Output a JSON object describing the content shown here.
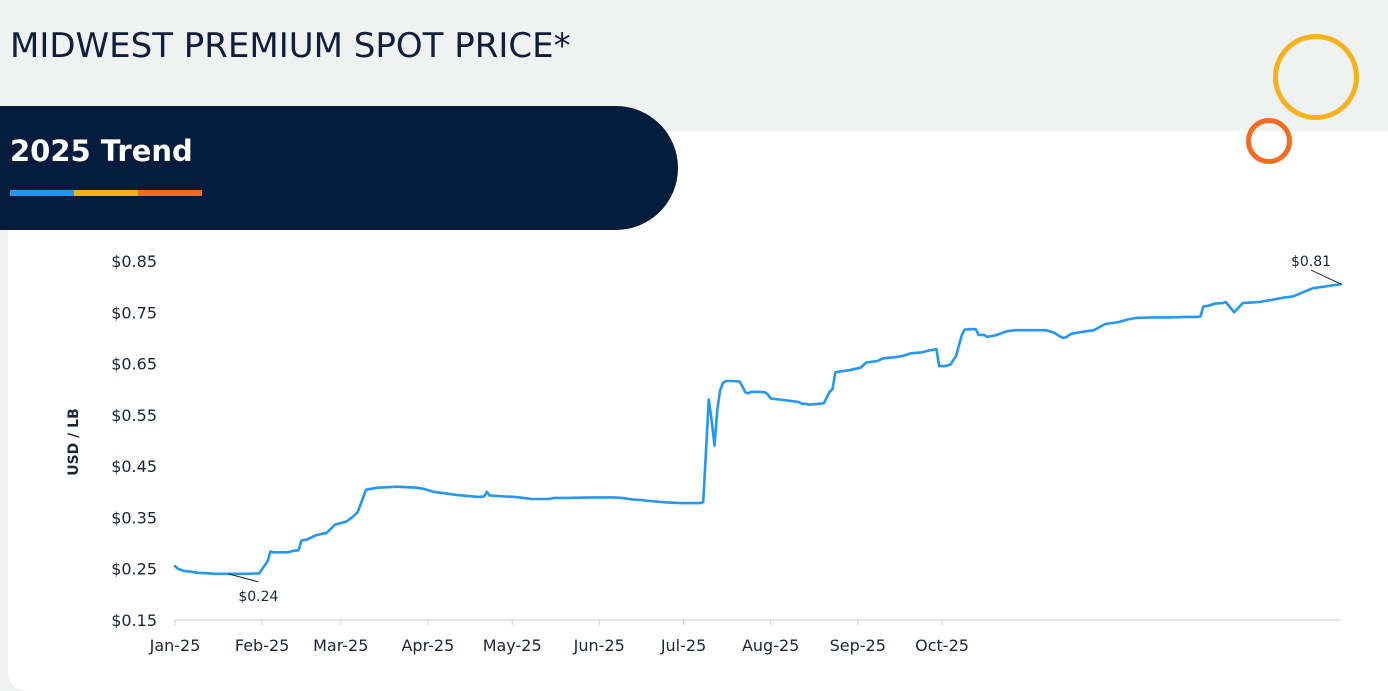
{
  "page": {
    "title": "MIDWEST PREMIUM SPOT PRICE*",
    "banner_title": "2025 Trend",
    "colors": {
      "banner": "#061c3c",
      "stripe_blue": "#2597ee",
      "stripe_yellow": "#f7b11a",
      "stripe_orange": "#f26b21",
      "line": "#2597ee"
    }
  },
  "chart_data": {
    "type": "line",
    "title": "",
    "xlabel": "",
    "ylabel": "USD / LB",
    "ylim": [
      0.15,
      0.85
    ],
    "y_ticks": [
      0.15,
      0.25,
      0.35,
      0.45,
      0.55,
      0.65,
      0.75,
      0.85
    ],
    "y_tick_labels": [
      "$0.15",
      "$0.25",
      "$0.35",
      "$0.45",
      "$0.55",
      "$0.65",
      "$0.75",
      "$0.85"
    ],
    "x_tick_dates": [
      "2025-01-01",
      "2025-02-01",
      "2025-03-01",
      "2025-04-01",
      "2025-05-01",
      "2025-06-01",
      "2025-07-01",
      "2025-08-01",
      "2025-09-01",
      "2025-10-01"
    ],
    "x_tick_labels": [
      "Jan-25",
      "Feb-25",
      "Mar-25",
      "Apr-25",
      "May-25",
      "Jun-25",
      "Jul-25",
      "Aug-25",
      "Sep-25",
      "Oct-25"
    ],
    "grid": false,
    "series": [
      {
        "values": [
          [
            "2025-01-01",
            0.255
          ],
          [
            "2025-01-02",
            0.25
          ],
          [
            "2025-01-04",
            0.246
          ],
          [
            "2025-01-07",
            0.244
          ],
          [
            "2025-01-09",
            0.242
          ],
          [
            "2025-01-13",
            0.241
          ],
          [
            "2025-01-15",
            0.24
          ],
          [
            "2025-01-20",
            0.24
          ],
          [
            "2025-01-27",
            0.24
          ],
          [
            "2025-01-31",
            0.241
          ],
          [
            "2025-02-03",
            0.265
          ],
          [
            "2025-02-04",
            0.284
          ],
          [
            "2025-02-05",
            0.282
          ],
          [
            "2025-02-10",
            0.282
          ],
          [
            "2025-02-11",
            0.283
          ],
          [
            "2025-02-12",
            0.285
          ],
          [
            "2025-02-14",
            0.286
          ],
          [
            "2025-02-15",
            0.305
          ],
          [
            "2025-02-17",
            0.307
          ],
          [
            "2025-02-20",
            0.315
          ],
          [
            "2025-02-24",
            0.32
          ],
          [
            "2025-02-27",
            0.336
          ],
          [
            "2025-03-03",
            0.342
          ],
          [
            "2025-03-05",
            0.35
          ],
          [
            "2025-03-07",
            0.36
          ],
          [
            "2025-03-10",
            0.404
          ],
          [
            "2025-03-14",
            0.408
          ],
          [
            "2025-03-21",
            0.41
          ],
          [
            "2025-03-28",
            0.408
          ],
          [
            "2025-03-31",
            0.405
          ],
          [
            "2025-04-03",
            0.4
          ],
          [
            "2025-04-07",
            0.397
          ],
          [
            "2025-04-11",
            0.394
          ],
          [
            "2025-04-15",
            0.392
          ],
          [
            "2025-04-19",
            0.39
          ],
          [
            "2025-04-21",
            0.391
          ],
          [
            "2025-04-22",
            0.4
          ],
          [
            "2025-04-23",
            0.393
          ],
          [
            "2025-04-28",
            0.391
          ],
          [
            "2025-05-02",
            0.39
          ],
          [
            "2025-05-05",
            0.388
          ],
          [
            "2025-05-08",
            0.386
          ],
          [
            "2025-05-14",
            0.386
          ],
          [
            "2025-05-16",
            0.388
          ],
          [
            "2025-05-20",
            0.388
          ],
          [
            "2025-05-30",
            0.389
          ],
          [
            "2025-06-04",
            0.389
          ],
          [
            "2025-06-06",
            0.389
          ],
          [
            "2025-06-09",
            0.388
          ],
          [
            "2025-06-13",
            0.385
          ],
          [
            "2025-06-16",
            0.384
          ],
          [
            "2025-06-19",
            0.382
          ],
          [
            "2025-06-23",
            0.38
          ],
          [
            "2025-06-26",
            0.379
          ],
          [
            "2025-06-30",
            0.378
          ],
          [
            "2025-07-02",
            0.378
          ],
          [
            "2025-07-07",
            0.378
          ],
          [
            "2025-07-08",
            0.38
          ],
          [
            "2025-07-09",
            0.48
          ],
          [
            "2025-07-10",
            0.58
          ],
          [
            "2025-07-11",
            0.54
          ],
          [
            "2025-07-12",
            0.49
          ],
          [
            "2025-07-13",
            0.56
          ],
          [
            "2025-07-14",
            0.598
          ],
          [
            "2025-07-15",
            0.612
          ],
          [
            "2025-07-16",
            0.616
          ],
          [
            "2025-07-18",
            0.616
          ],
          [
            "2025-07-21",
            0.615
          ],
          [
            "2025-07-22",
            0.605
          ],
          [
            "2025-07-23",
            0.594
          ],
          [
            "2025-07-24",
            0.592
          ],
          [
            "2025-07-25",
            0.595
          ],
          [
            "2025-07-28",
            0.595
          ],
          [
            "2025-07-30",
            0.594
          ],
          [
            "2025-07-31",
            0.59
          ],
          [
            "2025-08-01",
            0.582
          ],
          [
            "2025-08-04",
            0.58
          ],
          [
            "2025-08-07",
            0.578
          ],
          [
            "2025-08-11",
            0.575
          ],
          [
            "2025-08-12",
            0.572
          ],
          [
            "2025-08-15",
            0.57
          ],
          [
            "2025-08-19",
            0.572
          ],
          [
            "2025-08-20",
            0.573
          ],
          [
            "2025-08-22",
            0.595
          ],
          [
            "2025-08-23",
            0.6
          ],
          [
            "2025-08-24",
            0.633
          ],
          [
            "2025-08-26",
            0.635
          ],
          [
            "2025-08-29",
            0.637
          ],
          [
            "2025-09-02",
            0.642
          ],
          [
            "2025-09-04",
            0.652
          ],
          [
            "2025-09-08",
            0.655
          ],
          [
            "2025-09-10",
            0.66
          ],
          [
            "2025-09-15",
            0.663
          ],
          [
            "2025-09-17",
            0.665
          ],
          [
            "2025-09-20",
            0.67
          ],
          [
            "2025-09-24",
            0.672
          ],
          [
            "2025-09-26",
            0.675
          ],
          [
            "2025-09-29",
            0.678
          ],
          [
            "2025-09-30",
            0.645
          ],
          [
            "2025-10-02",
            0.645
          ],
          [
            "2025-10-04",
            0.648
          ],
          [
            "2025-10-06",
            0.665
          ],
          [
            "2025-10-08",
            0.705
          ],
          [
            "2025-10-09",
            0.716
          ],
          [
            "2025-10-11",
            0.717
          ],
          [
            "2025-10-13",
            0.717
          ],
          [
            "2025-10-14",
            0.706
          ],
          [
            "2025-10-16",
            0.706
          ],
          [
            "2025-10-17",
            0.702
          ],
          [
            "2025-10-20",
            0.705
          ],
          [
            "2025-10-24",
            0.713
          ],
          [
            "2025-10-27",
            0.715
          ],
          [
            "2025-11-03",
            0.715
          ],
          [
            "2025-11-07",
            0.715
          ],
          [
            "2025-11-10",
            0.71
          ],
          [
            "2025-11-12",
            0.703
          ],
          [
            "2025-11-13",
            0.7
          ],
          [
            "2025-11-14",
            0.701
          ],
          [
            "2025-11-16",
            0.708
          ],
          [
            "2025-11-20",
            0.712
          ],
          [
            "2025-11-24",
            0.715
          ],
          [
            "2025-11-28",
            0.727
          ],
          [
            "2025-12-03",
            0.731
          ],
          [
            "2025-12-06",
            0.736
          ],
          [
            "2025-12-09",
            0.739
          ],
          [
            "2025-12-15",
            0.74
          ],
          [
            "2025-12-21",
            0.74
          ],
          [
            "2025-12-27",
            0.741
          ],
          [
            "2025-12-31",
            0.741
          ],
          [
            "2026-01-01",
            0.742
          ],
          [
            "2026-01-02",
            0.761
          ],
          [
            "2026-01-04",
            0.763
          ],
          [
            "2026-01-06",
            0.767
          ],
          [
            "2026-01-09",
            0.768
          ],
          [
            "2026-01-10",
            0.77
          ],
          [
            "2026-01-13",
            0.75
          ],
          [
            "2026-01-16",
            0.768
          ],
          [
            "2026-01-22",
            0.77
          ],
          [
            "2026-01-27",
            0.775
          ],
          [
            "2026-01-31",
            0.779
          ],
          [
            "2026-02-03",
            0.781
          ],
          [
            "2026-02-06",
            0.788
          ],
          [
            "2026-02-10",
            0.797
          ],
          [
            "2026-02-14",
            0.8
          ],
          [
            "2026-02-20",
            0.805
          ]
        ]
      }
    ],
    "annotations": [
      {
        "label": "$0.24",
        "date": "2025-01-20",
        "value": 0.24
      },
      {
        "label": "$0.81",
        "date": "2026-02-20",
        "value": 0.805
      }
    ]
  }
}
